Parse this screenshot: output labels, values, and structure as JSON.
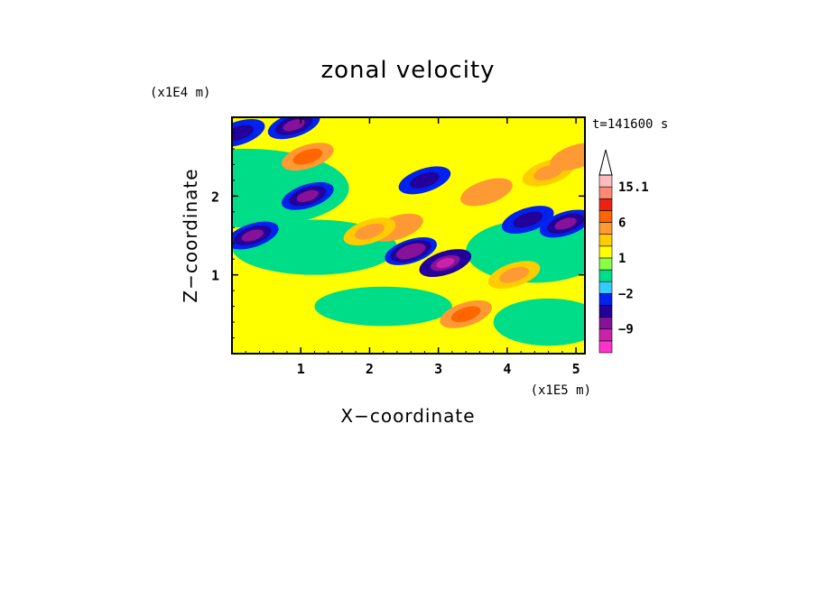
{
  "chart_data": {
    "type": "heatmap",
    "title": "zonal velocity",
    "xlabel": "X−coordinate",
    "ylabel": "Z−coordinate",
    "x_unit": "(x1E5 m)",
    "y_unit": "(x1E4 m)",
    "time_label": "t=141600 s",
    "xlim": [
      0,
      5.13
    ],
    "ylim": [
      0,
      3.0
    ],
    "x_ticks": [
      1,
      2,
      3,
      4,
      5
    ],
    "y_ticks": [
      1,
      2
    ],
    "x_tick_labels": [
      "1",
      "2",
      "3",
      "4",
      "5"
    ],
    "y_tick_labels": [
      "1",
      "2"
    ],
    "colorbar": {
      "labels": [
        {
          "value": 15.1,
          "text": "15.1"
        },
        {
          "value": 6,
          "text": "6"
        },
        {
          "value": 1,
          "text": "1"
        },
        {
          "value": -2,
          "text": "−2"
        },
        {
          "value": -9,
          "text": "−9"
        }
      ],
      "levels": [
        -15,
        -12,
        -9,
        -6,
        -3,
        -2,
        -1,
        0,
        1,
        2,
        3,
        6,
        9,
        12,
        15.1
      ],
      "colors": [
        "#ff33cc",
        "#cc22aa",
        "#881199",
        "#220099",
        "#0022ee",
        "#33ccff",
        "#00dd88",
        "#88ff44",
        "#ffff00",
        "#ffcc00",
        "#ff9933",
        "#ff6600",
        "#ee2211",
        "#ff8877",
        "#ffbbbb"
      ],
      "extend_max": true
    },
    "anomalies": [
      {
        "x": 0.3,
        "z": 1.5,
        "value": -8
      },
      {
        "x": 1.1,
        "z": 2.0,
        "value": -8
      },
      {
        "x": 1.1,
        "z": 2.5,
        "value": 6
      },
      {
        "x": 0.9,
        "z": 2.9,
        "value": -7
      },
      {
        "x": 2.6,
        "z": 1.3,
        "value": -9
      },
      {
        "x": 3.1,
        "z": 1.15,
        "value": -11
      },
      {
        "x": 2.4,
        "z": 1.6,
        "value": 5
      },
      {
        "x": 2.8,
        "z": 2.2,
        "value": -5
      },
      {
        "x": 4.85,
        "z": 1.65,
        "value": -8
      },
      {
        "x": 4.3,
        "z": 1.7,
        "value": -5
      },
      {
        "x": 3.7,
        "z": 2.05,
        "value": 5
      },
      {
        "x": 4.6,
        "z": 2.3,
        "value": 4
      },
      {
        "x": 3.4,
        "z": 0.5,
        "value": 6
      },
      {
        "x": 5.0,
        "z": 2.5,
        "value": 5
      },
      {
        "x": 2.0,
        "z": 1.55,
        "value": 4
      },
      {
        "x": 4.1,
        "z": 1.0,
        "value": 4
      },
      {
        "x": 0.1,
        "z": 2.8,
        "value": -4
      }
    ]
  }
}
